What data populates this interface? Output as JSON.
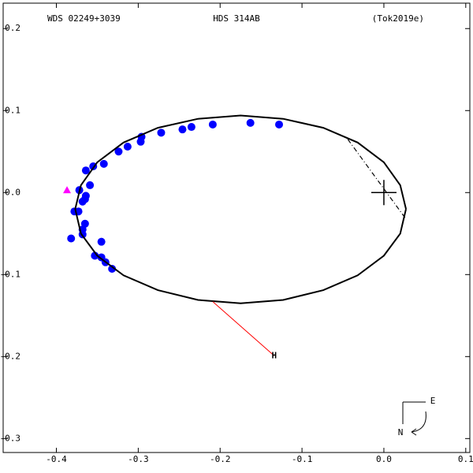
{
  "chart_data": {
    "type": "scatter",
    "header": [
      "WDS 02249+3039",
      "HDS 314AB",
      "(Tok2019e)"
    ],
    "xlim": [
      -0.465,
      0.105
    ],
    "ylim": [
      -0.317,
      0.231
    ],
    "xticks": [
      -0.4,
      -0.3,
      -0.2,
      -0.1,
      {
        "value": 0,
        "label": "0.0"
      },
      0.1
    ],
    "yticks": [
      0.2,
      0.1,
      {
        "value": 0,
        "label": "0.0"
      },
      -0.1,
      -0.2,
      -0.3
    ],
    "series": [
      {
        "mode": "markers",
        "marker": "circle",
        "color": "#0000ff",
        "x": [
          -0.128,
          -0.163,
          -0.209,
          -0.235,
          -0.246,
          -0.272,
          -0.296,
          -0.297,
          -0.313,
          -0.324,
          -0.342,
          -0.355,
          -0.364,
          -0.359,
          -0.364,
          -0.365,
          -0.368,
          -0.372,
          -0.373,
          -0.378,
          -0.365,
          -0.368,
          -0.368,
          -0.382,
          -0.345,
          -0.353,
          -0.345,
          -0.34,
          -0.332
        ],
        "y": [
          0.083,
          0.085,
          0.083,
          0.08,
          0.077,
          0.073,
          0.068,
          0.062,
          0.056,
          0.05,
          0.035,
          0.032,
          0.027,
          0.009,
          -0.004,
          -0.008,
          -0.011,
          0.003,
          -0.023,
          -0.023,
          -0.038,
          -0.045,
          -0.051,
          -0.056,
          -0.06,
          -0.077,
          -0.079,
          -0.085,
          -0.093
        ]
      },
      {
        "mode": "line",
        "color": "#000000",
        "dash": "solid",
        "width": 2,
        "x": [
          0.027,
          0.02,
          0.0,
          -0.032,
          -0.074,
          -0.123,
          -0.175,
          -0.227,
          -0.276,
          -0.318,
          -0.35,
          -0.37,
          -0.377,
          -0.37,
          -0.35,
          -0.318,
          -0.276,
          -0.227,
          -0.175,
          -0.123,
          -0.074,
          -0.032,
          0.0,
          0.02,
          0.027
        ],
        "y": [
          -0.02,
          0.009,
          0.037,
          0.061,
          0.079,
          0.09,
          0.094,
          0.09,
          0.079,
          0.061,
          0.037,
          0.009,
          -0.02,
          -0.05,
          -0.077,
          -0.101,
          -0.119,
          -0.131,
          -0.135,
          -0.131,
          -0.119,
          -0.101,
          -0.077,
          -0.05,
          -0.02
        ]
      },
      {
        "mode": "line",
        "color": "#000000",
        "dash": "dashdot",
        "width": 1.2,
        "x": [
          -0.044,
          0.026
        ],
        "y": [
          0.065,
          -0.031
        ]
      },
      {
        "mode": "line",
        "color": "#ff0000",
        "dash": "solid",
        "width": 1,
        "x": [
          -0.209,
          -0.134
        ],
        "y": [
          -0.133,
          -0.199
        ]
      },
      {
        "mode": "markers",
        "marker": "triangle",
        "color": "#ff00ff",
        "x": [
          -0.387
        ],
        "y": [
          0.003
        ]
      },
      {
        "mode": "markers",
        "marker": "cross",
        "color": "#000000",
        "x": [
          0
        ],
        "y": [
          0
        ]
      }
    ],
    "annotations": [
      {
        "text": "H",
        "x": -0.134,
        "y": -0.199,
        "color": "#ff0000"
      }
    ],
    "compass": [
      "E",
      "N"
    ]
  }
}
